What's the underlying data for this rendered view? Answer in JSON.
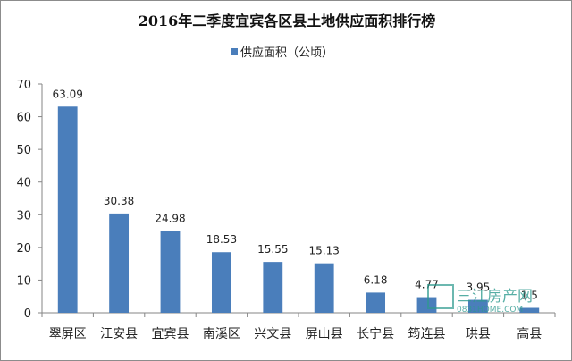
{
  "chart_data": {
    "type": "bar",
    "title": "2016年二季度宜宾各区县土地供应面积排行榜",
    "categories": [
      "翠屏区",
      "江安县",
      "宜宾县",
      "南溪区",
      "兴文县",
      "屏山县",
      "长宁县",
      "筠连县",
      "珙县",
      "高县"
    ],
    "series": [
      {
        "name": "供应面积（公顷）",
        "values": [
          63.09,
          30.38,
          24.98,
          18.53,
          15.55,
          15.13,
          6.18,
          4.77,
          3.95,
          1.5
        ],
        "labels": [
          "63.09",
          "30.38",
          "24.98",
          "18.53",
          "15.55",
          "15.13",
          "6.18",
          "4.77",
          "3.95",
          "1.5"
        ]
      }
    ],
    "ylim": [
      0,
      70
    ],
    "yticks": [
      "0",
      "10",
      "20",
      "30",
      "40",
      "50",
      "60",
      "70"
    ],
    "grid": false,
    "legend": "top-center",
    "colors": {
      "bar": "#4a7ebb",
      "axis": "#868686"
    }
  },
  "watermark": {
    "text": "三江房产网",
    "url": "0831HOME.COM"
  }
}
